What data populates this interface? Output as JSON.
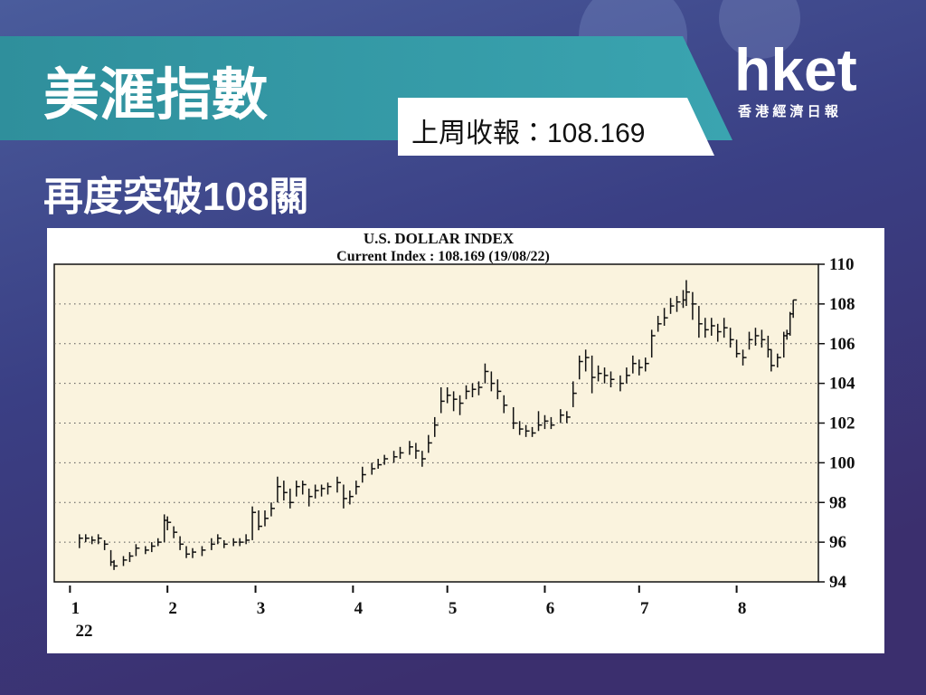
{
  "header": {
    "title": "美滙指數",
    "price_label": "上周收報：108.169",
    "logo": "hket",
    "logo_sub": "香 港 經 濟 日 報",
    "headline": "再度突破108關"
  },
  "chart_data": {
    "type": "ohlc",
    "title": "U.S. DOLLAR INDEX",
    "subtitle": "Current Index : 108.169 (19/08/22)",
    "year_label": "22",
    "grid": true,
    "color": "#111111",
    "xlim": [
      -5,
      238
    ],
    "xticks": [
      {
        "value": 0,
        "label": "1"
      },
      {
        "value": 31,
        "label": "2"
      },
      {
        "value": 59,
        "label": "3"
      },
      {
        "value": 90,
        "label": "4"
      },
      {
        "value": 120,
        "label": "5"
      },
      {
        "value": 151,
        "label": "6"
      },
      {
        "value": 181,
        "label": "7"
      },
      {
        "value": 212,
        "label": "8"
      }
    ],
    "ylim": [
      94,
      110
    ],
    "yticks": [
      94,
      96,
      98,
      100,
      102,
      104,
      106,
      108,
      110
    ],
    "x": [
      3,
      5,
      7,
      9,
      11,
      13,
      14,
      17,
      19,
      21,
      24,
      26,
      28,
      30,
      31,
      33,
      35,
      37,
      39,
      42,
      45,
      47,
      49,
      52,
      54,
      56,
      58,
      60,
      62,
      64,
      66,
      68,
      70,
      72,
      74,
      76,
      78,
      80,
      82,
      85,
      87,
      89,
      91,
      93,
      96,
      98,
      100,
      103,
      105,
      108,
      110,
      112,
      114,
      116,
      118,
      120,
      122,
      124,
      126,
      128,
      130,
      132,
      134,
      136,
      138,
      141,
      143,
      145,
      147,
      149,
      151,
      153,
      156,
      158,
      160,
      162,
      164,
      166,
      168,
      170,
      172,
      175,
      177,
      179,
      181,
      183,
      185,
      187,
      189,
      191,
      193,
      195,
      196,
      198,
      200,
      202,
      204,
      206,
      208,
      210,
      212,
      214,
      216,
      218,
      220,
      222,
      223,
      225,
      227,
      228,
      229,
      230
    ],
    "high": [
      96.4,
      96.4,
      96.3,
      96.4,
      96.1,
      95.6,
      95.1,
      95.3,
      95.5,
      95.9,
      95.8,
      96.0,
      96.2,
      97.4,
      97.3,
      96.8,
      96.3,
      95.8,
      95.7,
      95.8,
      96.2,
      96.4,
      96.1,
      96.2,
      96.2,
      96.4,
      97.8,
      97.6,
      97.6,
      98.0,
      99.3,
      99.1,
      98.7,
      99.1,
      99.1,
      98.7,
      98.9,
      98.9,
      99.0,
      99.3,
      98.9,
      98.6,
      99.1,
      99.8,
      100.0,
      100.2,
      100.4,
      100.6,
      100.8,
      101.1,
      101.0,
      100.6,
      101.4,
      102.3,
      103.8,
      103.8,
      103.6,
      103.4,
      103.9,
      104.0,
      104.1,
      105.0,
      104.6,
      104.2,
      103.4,
      102.8,
      102.1,
      101.9,
      101.8,
      102.6,
      102.4,
      102.3,
      102.7,
      102.6,
      104.1,
      105.4,
      105.7,
      105.4,
      104.9,
      104.8,
      104.6,
      104.4,
      104.8,
      105.4,
      105.2,
      105.3,
      106.7,
      107.4,
      107.8,
      108.3,
      108.4,
      108.7,
      109.2,
      108.6,
      107.9,
      107.3,
      107.3,
      107.0,
      107.3,
      106.8,
      106.2,
      105.7,
      106.6,
      106.8,
      106.7,
      106.4,
      105.7,
      105.5,
      106.6,
      106.7,
      107.6,
      108.2
    ],
    "low": [
      95.7,
      96.0,
      95.9,
      95.9,
      95.6,
      94.8,
      94.6,
      94.8,
      95.0,
      95.3,
      95.4,
      95.5,
      95.8,
      96.0,
      96.6,
      96.2,
      95.6,
      95.2,
      95.2,
      95.3,
      95.6,
      95.9,
      95.7,
      95.8,
      95.8,
      95.9,
      96.1,
      96.6,
      96.8,
      97.3,
      98.0,
      98.1,
      97.7,
      98.3,
      98.4,
      97.8,
      98.2,
      98.3,
      98.4,
      98.5,
      97.7,
      97.9,
      98.4,
      99.0,
      99.4,
      99.7,
      99.9,
      100.0,
      100.2,
      100.4,
      100.2,
      99.8,
      100.5,
      101.3,
      102.5,
      103.0,
      102.6,
      102.4,
      103.2,
      103.3,
      103.4,
      104.0,
      103.6,
      103.2,
      102.5,
      101.7,
      101.4,
      101.3,
      101.3,
      101.6,
      101.7,
      101.7,
      102.0,
      102.0,
      102.8,
      104.2,
      104.6,
      103.5,
      104.1,
      104.0,
      103.8,
      103.6,
      104.0,
      104.5,
      104.4,
      104.6,
      105.3,
      106.6,
      106.9,
      107.5,
      107.6,
      107.8,
      107.9,
      107.2,
      106.3,
      106.3,
      106.4,
      106.1,
      106.3,
      105.8,
      105.3,
      104.9,
      105.7,
      105.9,
      105.8,
      105.3,
      104.6,
      104.8,
      105.3,
      106.2,
      106.4,
      107.3
    ],
    "close": [
      96.2,
      96.2,
      96.1,
      96.2,
      95.9,
      95.0,
      94.8,
      95.1,
      95.3,
      95.7,
      95.6,
      95.8,
      96.0,
      97.1,
      97.0,
      96.5,
      95.9,
      95.4,
      95.5,
      95.6,
      95.9,
      96.2,
      95.9,
      96.0,
      96.0,
      96.1,
      97.5,
      96.8,
      97.2,
      97.7,
      98.8,
      98.5,
      98.0,
      98.8,
      98.9,
      98.3,
      98.6,
      98.7,
      98.8,
      99.0,
      98.2,
      98.3,
      98.8,
      99.4,
      99.7,
      99.9,
      100.2,
      100.3,
      100.5,
      100.8,
      100.6,
      100.2,
      101.0,
      101.9,
      103.1,
      103.4,
      103.2,
      103.0,
      103.6,
      103.7,
      103.8,
      104.6,
      104.0,
      103.6,
      102.9,
      102.0,
      101.7,
      101.6,
      101.5,
      101.9,
      102.1,
      101.9,
      102.4,
      102.3,
      103.5,
      105.1,
      105.3,
      104.3,
      104.5,
      104.4,
      104.2,
      104.0,
      104.4,
      105.0,
      104.8,
      105.0,
      106.4,
      107.0,
      107.3,
      107.9,
      108.1,
      108.2,
      108.6,
      108.0,
      107.0,
      106.7,
      106.9,
      106.6,
      106.8,
      106.2,
      105.5,
      105.3,
      106.2,
      106.4,
      106.2,
      105.7,
      104.9,
      105.3,
      106.4,
      106.5,
      107.5,
      108.2
    ]
  }
}
